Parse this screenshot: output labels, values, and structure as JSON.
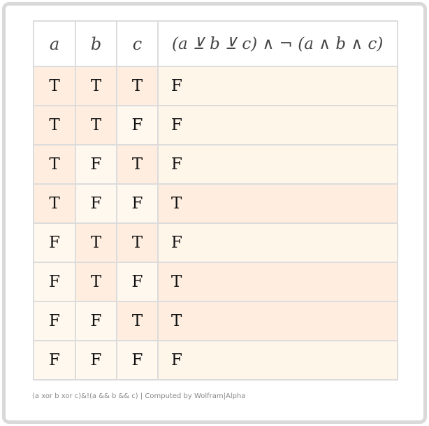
{
  "table": {
    "headers": [
      "a",
      "b",
      "c",
      "(a ⊻ b ⊻ c) ∧ ¬ (a ∧ b ∧ c)"
    ],
    "rows": [
      [
        "T",
        "T",
        "T",
        "F"
      ],
      [
        "T",
        "T",
        "F",
        "F"
      ],
      [
        "T",
        "F",
        "T",
        "F"
      ],
      [
        "T",
        "F",
        "F",
        "T"
      ],
      [
        "F",
        "T",
        "T",
        "F"
      ],
      [
        "F",
        "T",
        "F",
        "T"
      ],
      [
        "F",
        "F",
        "T",
        "T"
      ],
      [
        "F",
        "F",
        "F",
        "F"
      ]
    ]
  },
  "colors": {
    "true_cell": "#ffeee0",
    "false_cell": "#fff8ee",
    "border": "#dcdcdc"
  },
  "footer": "(a xor b xor c)&!(a && b && c) | Computed by Wolfram|Alpha"
}
